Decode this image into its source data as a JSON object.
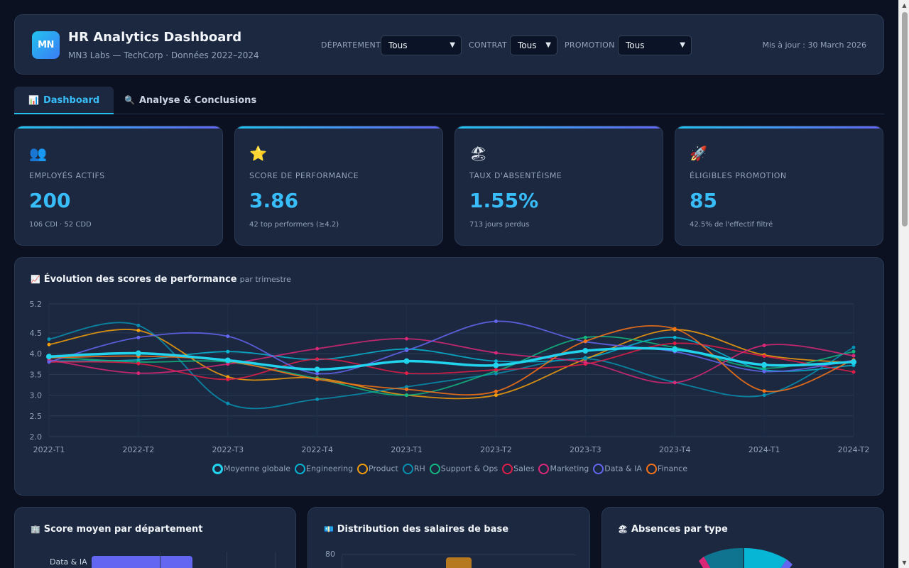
{
  "header": {
    "logo": "MN",
    "title": "HR Analytics Dashboard",
    "subtitle": "MN3 Labs — TechCorp · Données 2022–2024",
    "filters": [
      {
        "label": "DÉPARTEMENT",
        "value": "Tous"
      },
      {
        "label": "CONTRAT",
        "value": "Tous"
      },
      {
        "label": "PROMOTION",
        "value": "Tous"
      }
    ],
    "updated": "Mis à jour : 30 March 2026"
  },
  "tabs": [
    {
      "icon": "📊",
      "label": "Dashboard",
      "active": true
    },
    {
      "icon": "🔍",
      "label": "Analyse & Conclusions",
      "active": false
    }
  ],
  "kpis": [
    {
      "icon": "👥",
      "label": "EMPLOYÉS ACTIFS",
      "value": "200",
      "sub": "106 CDI · 52 CDD"
    },
    {
      "icon": "⭐",
      "label": "SCORE DE PERFORMANCE",
      "value": "3.86",
      "sub": "42 top performers (≥4.2)"
    },
    {
      "icon": "🏖",
      "label": "TAUX D'ABSENTÉISME",
      "value": "1.55%",
      "sub": "713 jours perdus"
    },
    {
      "icon": "🚀",
      "label": "ÉLIGIBLES PROMOTION",
      "value": "85",
      "sub": "42.5% de l'effectif filtré"
    }
  ],
  "trend_panel": {
    "icon": "📈",
    "title": "Évolution des scores de performance",
    "subtitle": "par trimestre"
  },
  "bottom_panels": [
    {
      "icon": "🏢",
      "title": "Score moyen par département"
    },
    {
      "icon": "💶",
      "title": "Distribution des salaires de base"
    },
    {
      "icon": "🏖",
      "title": "Absences par type"
    }
  ],
  "dept_bar_preview": {
    "label": "Data & IA"
  },
  "salary_preview": {
    "y_tick": "80"
  },
  "chart_data": {
    "type": "line",
    "categories": [
      "2022-T1",
      "2022-T2",
      "2022-T3",
      "2022-T4",
      "2023-T1",
      "2023-T2",
      "2023-T3",
      "2023-T4",
      "2024-T1",
      "2024-T2"
    ],
    "ylim": [
      2.0,
      5.2
    ],
    "yticks": [
      "2.0",
      "2.5",
      "3.0",
      "3.5",
      "4.0",
      "4.5",
      "5.2"
    ],
    "grid": true,
    "legend_position": "bottom",
    "series": [
      {
        "name": "Moyenne globale",
        "color": "#22d3ee",
        "main": true,
        "values": [
          3.93,
          4.01,
          3.84,
          3.62,
          3.82,
          3.72,
          4.07,
          4.1,
          3.73,
          3.8
        ]
      },
      {
        "name": "Engineering",
        "color": "#06b6d4",
        "values": [
          3.82,
          3.85,
          4.05,
          3.86,
          4.11,
          3.82,
          3.9,
          4.39,
          3.61,
          3.72
        ]
      },
      {
        "name": "Product",
        "color": "#f59e0b",
        "values": [
          4.22,
          4.56,
          3.44,
          3.41,
          3.0,
          3.0,
          3.87,
          4.58,
          3.97,
          3.78
        ]
      },
      {
        "name": "RH",
        "color": "#0891b2",
        "values": [
          4.35,
          4.68,
          2.8,
          2.9,
          3.2,
          3.52,
          3.88,
          3.31,
          3.0,
          4.15
        ]
      },
      {
        "name": "Support & Ops",
        "color": "#10b981",
        "values": [
          3.92,
          3.8,
          3.8,
          3.4,
          3.0,
          3.58,
          4.39,
          4.15,
          3.65,
          4.05
        ]
      },
      {
        "name": "Sales",
        "color": "#e11d48",
        "values": [
          3.8,
          3.76,
          3.38,
          3.87,
          3.53,
          3.61,
          3.75,
          4.25,
          3.94,
          3.56
        ]
      },
      {
        "name": "Marketing",
        "color": "#db2777",
        "values": [
          3.85,
          3.53,
          3.75,
          4.12,
          4.36,
          4.02,
          3.79,
          3.3,
          4.2,
          3.95
        ]
      },
      {
        "name": "Data & IA",
        "color": "#6366f1",
        "values": [
          3.8,
          4.39,
          4.42,
          3.52,
          4.08,
          4.78,
          4.29,
          4.05,
          3.57,
          3.84
        ]
      },
      {
        "name": "Finance",
        "color": "#f97316",
        "values": [
          3.9,
          3.94,
          3.82,
          3.38,
          3.14,
          3.09,
          4.3,
          4.6,
          3.1,
          3.85
        ]
      }
    ]
  },
  "colors": {
    "accent": "#38bdf8",
    "panel": "#1c2840",
    "background": "#0b1120"
  }
}
